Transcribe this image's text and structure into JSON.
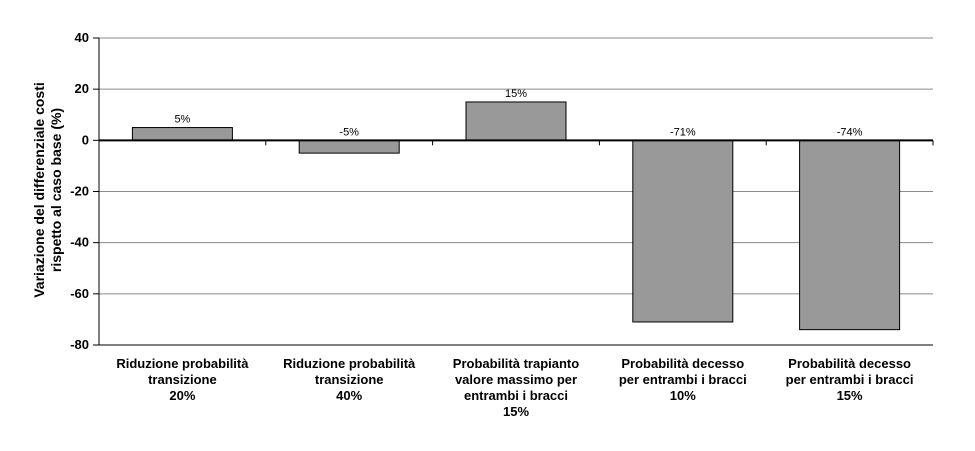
{
  "chart_data": {
    "type": "bar",
    "ylabel_lines": [
      "Variazione del differenziale costi",
      "rispetto al caso base (%)"
    ],
    "ylim": [
      -80,
      40
    ],
    "yticks": [
      40,
      20,
      0,
      -20,
      -40,
      -60,
      -80
    ],
    "grid": true,
    "categories": [
      [
        "Riduzione probabilità",
        "transizione",
        "20%"
      ],
      [
        "Riduzione probabilità",
        "transizione",
        "40%"
      ],
      [
        "Probabilità trapianto",
        "valore massimo per",
        "entrambi i bracci",
        "15%"
      ],
      [
        "Probabilità decesso",
        "per entrambi i bracci",
        "10%"
      ],
      [
        "Probabilità decesso",
        "per entrambi i bracci",
        "15%"
      ]
    ],
    "values": [
      5,
      -5,
      15,
      -71,
      -74
    ],
    "data_labels": [
      "5%",
      "-5%",
      "15%",
      "-71%",
      "-74%"
    ],
    "bar_color": "#999999"
  }
}
